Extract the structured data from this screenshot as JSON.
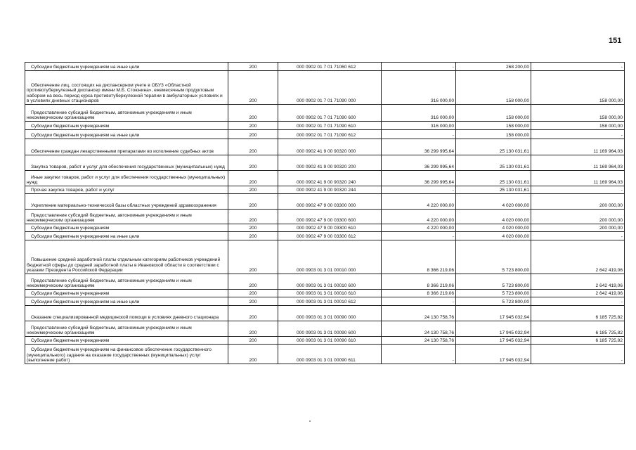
{
  "page_number": "151",
  "rows": [
    {
      "name": "Субсидии бюджетным учреждениям на иные цели",
      "code": "200",
      "kbk": "000 0902 01 7 01 71060 612",
      "approved": "-",
      "executed": "268 200,00",
      "unexecuted": "-"
    },
    {
      "name": "Обеспечение лиц, состоящих на диспансерном учете в ОБУЗ «Областной противотуберкулезный диспансер имени М.Б. Стоюнина», ежемесячным продуктовым набором на весь период курса противотуберкулезной терапии в амбулаторных условиях и в условиях дневных стационаров",
      "code": "200",
      "kbk": "000 0902 01 7 01 71090 000",
      "approved": "316 000,00",
      "executed": "158 000,00",
      "unexecuted": "158 000,00"
    },
    {
      "name": "Предоставление субсидий бюджетным, автономным учреждениям и иным некоммерческим организациям",
      "code": "200",
      "kbk": "000 0902 01 7 01 71090 600",
      "approved": "316 000,00",
      "executed": "158 000,00",
      "unexecuted": "158 000,00"
    },
    {
      "name": "Субсидии бюджетным учреждениям",
      "code": "200",
      "kbk": "000 0902 01 7 01 71090 610",
      "approved": "316 000,00",
      "executed": "158 000,00",
      "unexecuted": "158 000,00"
    },
    {
      "name": "Субсидии бюджетным учреждениям на иные цели",
      "code": "200",
      "kbk": "000 0902 01 7 01 71090 612",
      "approved": "-",
      "executed": "158 000,00",
      "unexecuted": "-"
    },
    {
      "name": "Обеспечение граждан лекарственными препаратами во исполнение судебных актов",
      "code": "200",
      "kbk": "000 0902 41 9 00 90320 000",
      "approved": "36 299 995,64",
      "executed": "25 130 031,61",
      "unexecuted": "11 169 964,03"
    },
    {
      "name": "Закупка товаров, работ и услуг для обеспечения государственных (муниципальных) нужд",
      "code": "200",
      "kbk": "000 0902 41 9 00 90320 200",
      "approved": "36 299 995,64",
      "executed": "25 130 031,61",
      "unexecuted": "11 169 964,03"
    },
    {
      "name": "Иные закупки товаров, работ и услуг для обеспечения государственных (муниципальных) нужд",
      "code": "200",
      "kbk": "000 0902 41 9 00 90320 240",
      "approved": "36 299 995,64",
      "executed": "25 130 031,61",
      "unexecuted": "11 169 964,03"
    },
    {
      "name": "Прочая закупка товаров, работ и услуг",
      "code": "200",
      "kbk": "000 0902 41 9 00 90320 244",
      "approved": "-",
      "executed": "25 130 031,61",
      "unexecuted": "-"
    },
    {
      "name": "Укрепление материально-технической базы областных учреждений здравоохранения",
      "code": "200",
      "kbk": "000 0902 47 9 00 03300 000",
      "approved": "4 220 000,00",
      "executed": "4 020 000,00",
      "unexecuted": "200 000,00"
    },
    {
      "name": "Предоставление субсидий бюджетным, автономным учреждениям и иным некоммерческим организациям",
      "code": "200",
      "kbk": "000 0902 47 9 00 03300 600",
      "approved": "4 220 000,00",
      "executed": "4 020 000,00",
      "unexecuted": "200 000,00"
    },
    {
      "name": "Субсидии бюджетным учреждениям",
      "code": "200",
      "kbk": "000 0902 47 9 00 03300 610",
      "approved": "4 220 000,00",
      "executed": "4 020 000,00",
      "unexecuted": "200 000,00"
    },
    {
      "name": "Субсидии бюджетным учреждениям на иные цели",
      "code": "200",
      "kbk": "000 0902 47 9 00 03300 612",
      "approved": "-",
      "executed": "4 020 000,00",
      "unexecuted": "-"
    },
    {
      "name": "Повышение средней заработной платы отдельным категориям работников учреждений бюджетной сферы до средней заработной платы в Ивановской области в соответствии с указами Президента Российской Федерации",
      "code": "200",
      "kbk": "000 0903 01 3 01 00010 000",
      "approved": "8 366 219,06",
      "executed": "5 723 800,00",
      "unexecuted": "2 642 419,06"
    },
    {
      "name": "Предоставление субсидий бюджетным, автономным учреждениям и иным некоммерческим организациям",
      "code": "200",
      "kbk": "000 0903 01 3 01 00010 600",
      "approved": "8 366 219,06",
      "executed": "5 723 800,00",
      "unexecuted": "2 642 419,06"
    },
    {
      "name": "Субсидии бюджетным учреждениям",
      "code": "200",
      "kbk": "000 0903 01 3 01 00010 610",
      "approved": "8 366 219,06",
      "executed": "5 723 800,00",
      "unexecuted": "2 642 419,06"
    },
    {
      "name": "Субсидии бюджетным учреждениям на иные цели",
      "code": "200",
      "kbk": "000 0903 01 3 01 00010 612",
      "approved": "-",
      "executed": "5 723 800,00",
      "unexecuted": "-"
    },
    {
      "name": "Оказание специализированной медицинской помощи в условиях дневного стационара",
      "code": "200",
      "kbk": "000 0903 01 3 01 00090 000",
      "approved": "24 130 758,76",
      "executed": "17 945 032,94",
      "unexecuted": "6 185 725,82"
    },
    {
      "name": "Предоставление субсидий бюджетным, автономным учреждениям и иным некоммерческим организациям",
      "code": "200",
      "kbk": "000 0903 01 3 01 00090 600",
      "approved": "24 130 758,76",
      "executed": "17 945 032,94",
      "unexecuted": "6 185 725,82"
    },
    {
      "name": "Субсидии бюджетным учреждениям",
      "code": "200",
      "kbk": "000 0903 01 3 01 00090 610",
      "approved": "24 130 758,76",
      "executed": "17 945 032,94",
      "unexecuted": "6 185 725,82"
    },
    {
      "name": "Субсидии бюджетным учреждениям на финансовое обеспечение государственного (муниципального) задания на оказание государственных (муниципальных) услуг (выполнение работ)",
      "code": "200",
      "kbk": "000 0903 01 3 01 00090 611",
      "approved": "-",
      "executed": "17 945 032,94",
      "unexecuted": "-"
    }
  ]
}
